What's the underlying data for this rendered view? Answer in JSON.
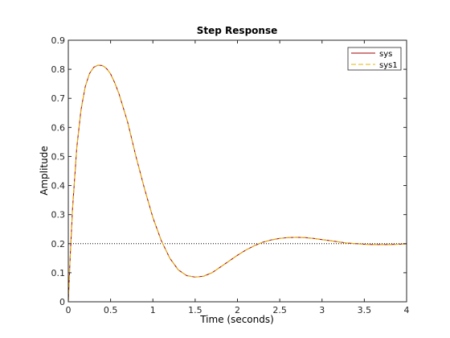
{
  "chart_data": {
    "type": "line",
    "title": "Step Response",
    "xlabel": "Time (seconds)",
    "ylabel": "Amplitude",
    "xlim": [
      0,
      4
    ],
    "ylim": [
      0,
      0.9
    ],
    "xticks": [
      0,
      0.5,
      1,
      1.5,
      2,
      2.5,
      3,
      3.5,
      4
    ],
    "xtick_labels": [
      "0",
      "0.5",
      "1",
      "1.5",
      "2",
      "2.5",
      "3",
      "3.5",
      "4"
    ],
    "yticks": [
      0,
      0.1,
      0.2,
      0.3,
      0.4,
      0.5,
      0.6,
      0.7,
      0.8,
      0.9
    ],
    "ytick_labels": [
      "0",
      "0.1",
      "0.2",
      "0.3",
      "0.4",
      "0.5",
      "0.6",
      "0.7",
      "0.8",
      "0.9"
    ],
    "grid": false,
    "legend_position": "top-right",
    "reference_line": {
      "y": 0.2,
      "style": "dotted",
      "color": "#000000"
    },
    "x": [
      0,
      0.02,
      0.05,
      0.1,
      0.15,
      0.2,
      0.25,
      0.3,
      0.35,
      0.4,
      0.43,
      0.46,
      0.5,
      0.55,
      0.6,
      0.7,
      0.8,
      0.9,
      1.0,
      1.1,
      1.2,
      1.3,
      1.4,
      1.5,
      1.6,
      1.7,
      1.8,
      1.9,
      2.0,
      2.1,
      2.2,
      2.3,
      2.4,
      2.5,
      2.6,
      2.7,
      2.8,
      2.9,
      3.0,
      3.1,
      3.2,
      3.3,
      3.4,
      3.5,
      3.6,
      3.7,
      3.8,
      3.9,
      4.0
    ],
    "series": [
      {
        "name": "sys",
        "color": "#a00000",
        "style": "solid",
        "values": [
          0,
          0.14,
          0.32,
          0.53,
          0.66,
          0.74,
          0.785,
          0.807,
          0.814,
          0.813,
          0.808,
          0.8,
          0.784,
          0.753,
          0.715,
          0.62,
          0.5,
          0.39,
          0.29,
          0.21,
          0.15,
          0.11,
          0.09,
          0.085,
          0.088,
          0.1,
          0.12,
          0.14,
          0.16,
          0.178,
          0.193,
          0.205,
          0.213,
          0.218,
          0.221,
          0.222,
          0.221,
          0.218,
          0.214,
          0.21,
          0.206,
          0.202,
          0.2,
          0.198,
          0.197,
          0.197,
          0.197,
          0.198,
          0.199
        ]
      },
      {
        "name": "sys1",
        "color": "#e6b400",
        "style": "dashed",
        "values": [
          0,
          0.14,
          0.32,
          0.53,
          0.66,
          0.74,
          0.785,
          0.807,
          0.814,
          0.813,
          0.808,
          0.8,
          0.784,
          0.753,
          0.715,
          0.62,
          0.5,
          0.39,
          0.29,
          0.21,
          0.15,
          0.11,
          0.09,
          0.085,
          0.088,
          0.1,
          0.12,
          0.14,
          0.16,
          0.178,
          0.193,
          0.205,
          0.213,
          0.218,
          0.221,
          0.222,
          0.221,
          0.218,
          0.214,
          0.21,
          0.206,
          0.202,
          0.2,
          0.198,
          0.197,
          0.197,
          0.197,
          0.198,
          0.199
        ]
      }
    ]
  }
}
